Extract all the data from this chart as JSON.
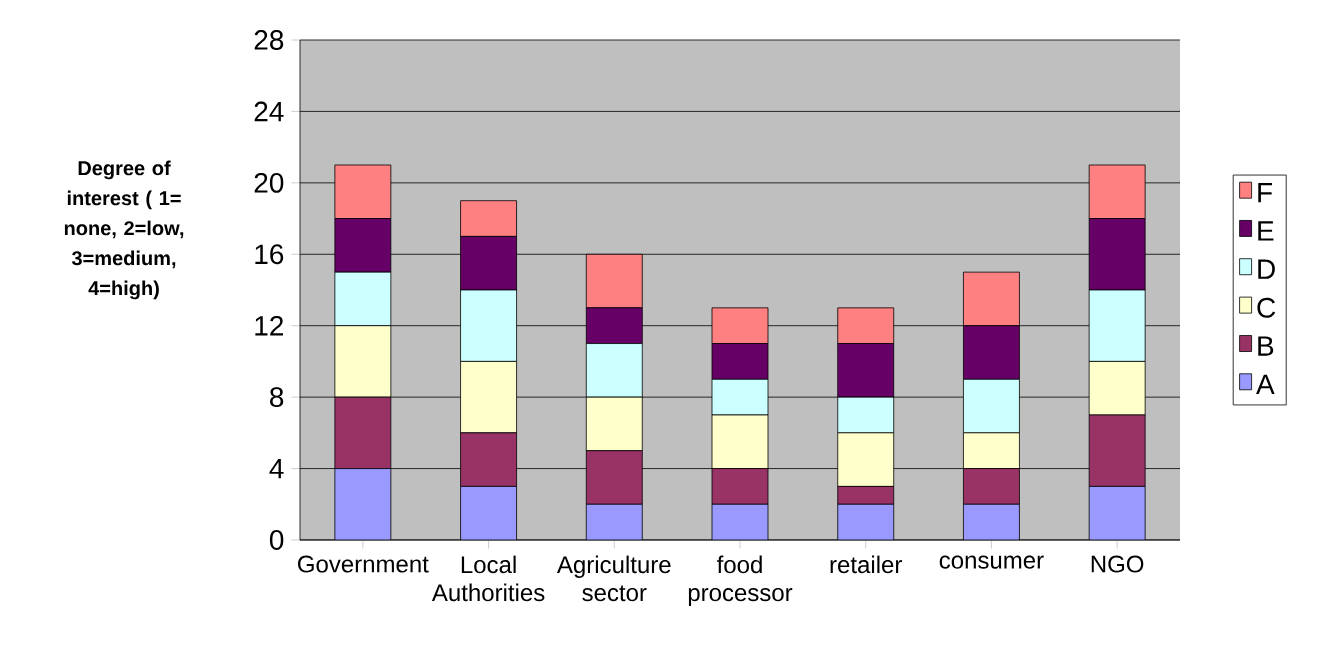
{
  "chart_data": {
    "type": "bar",
    "stacked": true,
    "ylabel": "Degree of interest ( 1= none, 2=low, 3=medium, 4=high)",
    "categories": [
      "Government",
      "Local Authorities",
      "Agriculture sector",
      "food processor",
      "retailer",
      "consumer",
      "NGO"
    ],
    "series": [
      {
        "name": "A",
        "color": "#9999ff",
        "values": [
          4,
          3,
          2,
          2,
          2,
          2,
          3
        ]
      },
      {
        "name": "B",
        "color": "#993366",
        "values": [
          4,
          3,
          3,
          2,
          1,
          2,
          4
        ]
      },
      {
        "name": "C",
        "color": "#ffffcc",
        "values": [
          4,
          4,
          3,
          3,
          3,
          2,
          3
        ]
      },
      {
        "name": "D",
        "color": "#ccffff",
        "values": [
          3,
          4,
          3,
          2,
          2,
          3,
          4
        ]
      },
      {
        "name": "E",
        "color": "#660066",
        "values": [
          3,
          3,
          2,
          2,
          3,
          3,
          4
        ]
      },
      {
        "name": "F",
        "color": "#ff8080",
        "values": [
          3,
          2,
          3,
          2,
          2,
          3,
          3
        ]
      }
    ],
    "ylim": [
      0,
      28
    ],
    "yticks": [
      0,
      4,
      8,
      12,
      16,
      20,
      24,
      28
    ],
    "grid": "y",
    "legend": "right"
  }
}
